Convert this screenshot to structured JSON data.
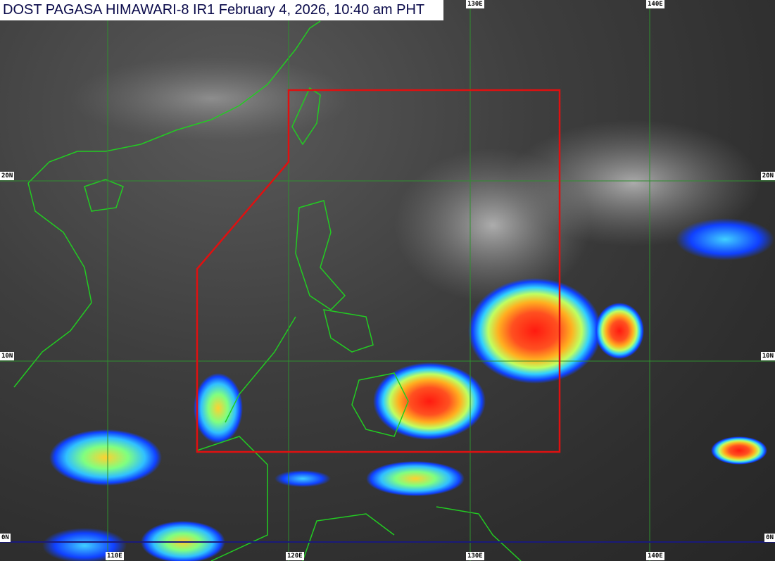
{
  "title": "DOST PAGASA HIMAWARI-8 IR1 February 4, 2026, 10:40 am PHT",
  "grid_labels": {
    "top": [
      "130E",
      "140E"
    ],
    "left": [
      "20N",
      "10N",
      "0N"
    ],
    "right": [
      "20N",
      "10N",
      "0N"
    ],
    "bottom": [
      "110E",
      "120E",
      "130E",
      "140E"
    ]
  },
  "colors": {
    "grid": "#2f8f2f",
    "coastline": "#22cc22",
    "area_of_responsibility": "#e01010",
    "equator": "#1a1a7a",
    "cold_cloud_scale": [
      "#1030ff",
      "#20c0ff",
      "#60ff80",
      "#ffff40",
      "#ff9020",
      "#ff2010"
    ]
  }
}
